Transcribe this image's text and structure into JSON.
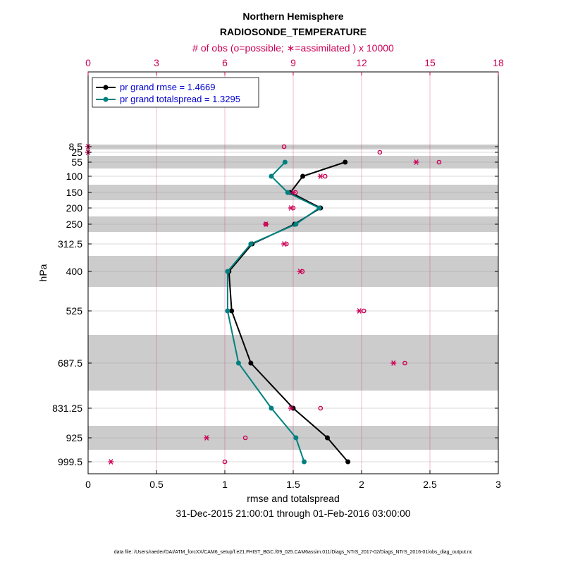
{
  "header": {
    "title": "Northern Hemisphere",
    "subtitle": "RADIOSONDE_TEMPERATURE",
    "top_axis_label": "# of obs (o=possible; ∗=assimilated ) x 10000"
  },
  "footer": {
    "period": "31-Dec-2015 21:00:01 through 01-Feb-2016 03:00:00",
    "data_file": "data file: /Users/raeder/DAI/ATM_forcXX/CAM6_setup/f.e21.FHIST_BGC.f09_025.CAM6assim.011/Diags_NTrS_2017-02/Diags_NTrS_2016-01/obs_diag_output.nc"
  },
  "colors": {
    "rmse": "#000000",
    "spread": "#008080",
    "obs": "#cc0055",
    "band": "#cccccc"
  },
  "chart_data": {
    "type": "line",
    "title": "Northern Hemisphere",
    "subtitle": "RADIOSONDE_TEMPERATURE",
    "xlabel": "rmse and totalspread",
    "ylabel": "hPa",
    "xlim": [
      0,
      3
    ],
    "x_ticks": [
      "0",
      "0.5",
      "1",
      "1.5",
      "2",
      "2.5",
      "3"
    ],
    "top_xlabel": "# of obs (o=possible; ∗=assimilated ) x 10000",
    "top_xlim": [
      0,
      18
    ],
    "top_ticks": [
      "0",
      "3",
      "6",
      "9",
      "12",
      "15",
      "18"
    ],
    "levels": [
      "8.5",
      "25",
      "55",
      "100",
      "150",
      "200",
      "250",
      "312.5",
      "400",
      "525",
      "687.5",
      "831.25",
      "925",
      "999.5"
    ],
    "series": [
      {
        "name": "pr grand rmse = 1.4669",
        "color": "#000000",
        "levels": [
          "55",
          "100",
          "150",
          "200",
          "250",
          "312.5",
          "400",
          "525",
          "687.5",
          "831.25",
          "925",
          "999.5"
        ],
        "values": [
          1.88,
          1.57,
          1.48,
          1.7,
          1.51,
          1.2,
          1.03,
          1.05,
          1.19,
          1.5,
          1.75,
          1.9
        ]
      },
      {
        "name": "pr grand totalspread = 1.3295",
        "color": "#008080",
        "levels": [
          "55",
          "100",
          "150",
          "200",
          "250",
          "312.5",
          "400",
          "525",
          "687.5",
          "831.25",
          "925",
          "999.5"
        ],
        "values": [
          1.44,
          1.34,
          1.46,
          1.69,
          1.52,
          1.19,
          1.02,
          1.02,
          1.1,
          1.34,
          1.52,
          1.58
        ]
      }
    ],
    "obs_possible": {
      "levels": [
        "8.5",
        "25",
        "55",
        "100",
        "150",
        "200",
        "250",
        "312.5",
        "400",
        "525",
        "687.5",
        "831.25",
        "925",
        "999.5"
      ],
      "values": [
        8.6,
        12.8,
        15.4,
        10.4,
        9.1,
        9.0,
        7.8,
        8.7,
        9.4,
        12.1,
        13.9,
        10.2,
        6.9,
        6.0
      ]
    },
    "obs_assimilated": {
      "levels": [
        "8.5",
        "25",
        "55",
        "100",
        "150",
        "200",
        "250",
        "312.5",
        "400",
        "525",
        "687.5",
        "831.25",
        "925",
        "999.5"
      ],
      "values": [
        0.0,
        0.0,
        14.4,
        10.2,
        9.0,
        8.9,
        7.8,
        8.6,
        9.3,
        11.9,
        13.4,
        8.9,
        5.2,
        1.0
      ]
    },
    "legend": [
      "pr grand rmse = 1.4669",
      "pr grand totalspread = 1.3295"
    ]
  }
}
